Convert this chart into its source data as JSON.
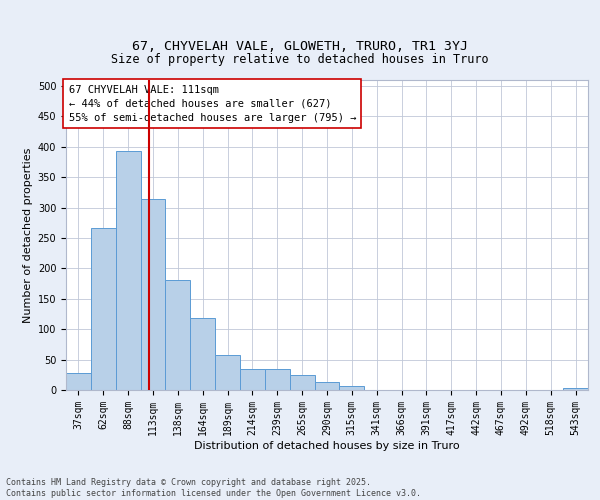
{
  "title": "67, CHYVELAH VALE, GLOWETH, TRURO, TR1 3YJ",
  "subtitle": "Size of property relative to detached houses in Truro",
  "xlabel": "Distribution of detached houses by size in Truro",
  "ylabel": "Number of detached properties",
  "categories": [
    "37sqm",
    "62sqm",
    "88sqm",
    "113sqm",
    "138sqm",
    "164sqm",
    "189sqm",
    "214sqm",
    "239sqm",
    "265sqm",
    "290sqm",
    "315sqm",
    "341sqm",
    "366sqm",
    "391sqm",
    "417sqm",
    "442sqm",
    "467sqm",
    "492sqm",
    "518sqm",
    "543sqm"
  ],
  "values": [
    28,
    267,
    393,
    315,
    181,
    119,
    58,
    34,
    34,
    24,
    13,
    7,
    0,
    0,
    0,
    0,
    0,
    0,
    0,
    0,
    4
  ],
  "bar_color": "#b8d0e8",
  "bar_edge_color": "#5b9bd5",
  "vline_x_idx": 2.82,
  "vline_color": "#cc0000",
  "annotation_line1": "67 CHYVELAH VALE: 111sqm",
  "annotation_line2": "← 44% of detached houses are smaller (627)",
  "annotation_line3": "55% of semi-detached houses are larger (795) →",
  "annotation_box_color": "#ffffff",
  "annotation_box_edge": "#cc0000",
  "ylim": [
    0,
    510
  ],
  "yticks": [
    0,
    50,
    100,
    150,
    200,
    250,
    300,
    350,
    400,
    450,
    500
  ],
  "bg_color": "#e8eef8",
  "plot_bg_color": "#ffffff",
  "footer": "Contains HM Land Registry data © Crown copyright and database right 2025.\nContains public sector information licensed under the Open Government Licence v3.0.",
  "title_fontsize": 9.5,
  "subtitle_fontsize": 8.5,
  "axis_label_fontsize": 8,
  "tick_fontsize": 7,
  "annotation_fontsize": 7.5,
  "footer_fontsize": 6
}
